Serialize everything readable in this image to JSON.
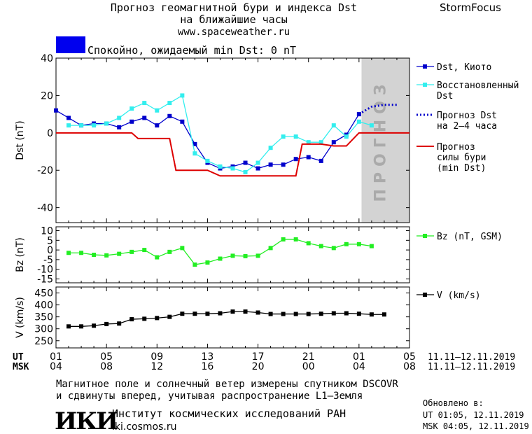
{
  "header": {
    "title_line1": "Прогноз геомагнитной бури и индекса Dst",
    "title_line2": "на ближайшие часы",
    "url": "www.spaceweather.ru",
    "brand": "StormFocus",
    "status_text": "Спокойно, ожидаемый min Dst: 0 nT",
    "status_color": "#0000ee"
  },
  "forecast_watermark": "ПРОГНОЗ",
  "time_axis": {
    "ut_label": "UT",
    "msk_label": "MSK",
    "ut_ticks": [
      "01",
      "05",
      "09",
      "13",
      "17",
      "21",
      "01",
      "05"
    ],
    "msk_ticks": [
      "04",
      "08",
      "12",
      "16",
      "20",
      "00",
      "04",
      "08"
    ],
    "ut_range_text": "11.11–12.11.2019",
    "msk_range_text": "11.11–12.11.2019"
  },
  "footer": {
    "note_line1": "Магнитное поле и солнечный ветер измерены спутником DSCOVR",
    "note_line2": "и сдвинуты вперед, учитывая распространение L1–Земля",
    "institute_logo": "ИКИ",
    "institute_name": "Институт космических исследований РАН",
    "institute_url": "iki.cosmos.ru",
    "updated_label": "Обновлено в:",
    "updated_ut": "UT  01:05, 12.11.2019",
    "updated_msk": "MSK 04:05, 12.11.2019"
  },
  "chart_data": [
    {
      "type": "line",
      "ylabel": "Dst (nT)",
      "ylim": [
        -48,
        40
      ],
      "yticks": [
        40,
        20,
        0,
        -20,
        -40
      ],
      "x_unit": "hours since 01 UT 11.11.2019",
      "xlim": [
        0,
        28
      ],
      "forecast_region": [
        24.2,
        28
      ],
      "series": [
        {
          "name": "Dst, Киото",
          "color": "#0000cc",
          "style": "line-square",
          "x": [
            0,
            1,
            2,
            3,
            4,
            5,
            6,
            7,
            8,
            9,
            10,
            11,
            12,
            13,
            14,
            15,
            16,
            17,
            18,
            19,
            20,
            21,
            22,
            23,
            24
          ],
          "values": [
            12,
            8,
            4,
            5,
            5,
            3,
            6,
            8,
            4,
            9,
            6,
            -6,
            -16,
            -19,
            -18,
            -16,
            -19,
            -17,
            -17,
            -14,
            -13,
            -15,
            -5,
            -1,
            10
          ]
        },
        {
          "name": "Восстановленный Dst",
          "color": "#33eeee",
          "style": "line-square",
          "x": [
            1,
            2,
            3,
            4,
            5,
            6,
            7,
            8,
            9,
            10,
            11,
            12,
            13,
            14,
            15,
            16,
            17,
            18,
            19,
            20,
            21,
            22,
            23,
            24,
            25
          ],
          "values": [
            4,
            4,
            4,
            5,
            8,
            13,
            16,
            12,
            16,
            20,
            -11,
            -15,
            -18,
            -19,
            -21,
            -16,
            -8,
            -2,
            -2,
            -5,
            -5,
            4,
            -2,
            6,
            4
          ]
        },
        {
          "name": "Прогноз Dst на 2–4 часа",
          "color": "#0000cc",
          "style": "dotted",
          "x": [
            24,
            25,
            26,
            27
          ],
          "values": [
            10,
            14,
            15,
            15
          ]
        },
        {
          "name": "Прогноз силы бури (min Dst)",
          "color": "#dd0000",
          "style": "step",
          "x": [
            0,
            6,
            6.5,
            8,
            9,
            9.5,
            12,
            13,
            18,
            19,
            19.5,
            21,
            22,
            23,
            24,
            28
          ],
          "values": [
            0,
            0,
            -3,
            -3,
            -3,
            -20,
            -20,
            -23,
            -23,
            -23,
            -6,
            -6,
            -7,
            -7,
            0,
            0
          ]
        }
      ]
    },
    {
      "type": "line",
      "ylabel": "Bz (nT)",
      "ylim": [
        -17,
        12
      ],
      "yticks": [
        10,
        5,
        0,
        -5,
        -10,
        -15
      ],
      "x_unit": "hours since 01 UT 11.11.2019",
      "xlim": [
        0,
        28
      ],
      "series": [
        {
          "name": "Bz (nT, GSM)",
          "color": "#22ee22",
          "style": "line-square",
          "x": [
            1,
            2,
            3,
            4,
            5,
            6,
            7,
            8,
            9,
            10,
            11,
            12,
            13,
            14,
            15,
            16,
            17,
            18,
            19,
            20,
            21,
            22,
            23,
            24,
            25
          ],
          "values": [
            -1.5,
            -1.5,
            -2.5,
            -2.8,
            -2,
            -1,
            0,
            -3.8,
            -1,
            1,
            -7.6,
            -6.5,
            -4.5,
            -3,
            -3.2,
            -3,
            1,
            5.5,
            5.5,
            3.5,
            2,
            1,
            3,
            3,
            2
          ]
        }
      ]
    },
    {
      "type": "line",
      "ylabel": "V (km/s)",
      "ylim": [
        220,
        475
      ],
      "yticks": [
        450,
        400,
        350,
        300,
        250
      ],
      "x_unit": "hours since 01 UT 11.11.2019",
      "xlim": [
        0,
        28
      ],
      "series": [
        {
          "name": "V (km/s)",
          "color": "#000000",
          "style": "line-square",
          "x": [
            1,
            2,
            3,
            4,
            5,
            6,
            7,
            8,
            9,
            10,
            11,
            12,
            13,
            14,
            15,
            16,
            17,
            18,
            19,
            20,
            21,
            22,
            23,
            24,
            25,
            26
          ],
          "values": [
            310,
            310,
            313,
            320,
            322,
            340,
            342,
            345,
            350,
            363,
            363,
            363,
            365,
            372,
            372,
            368,
            362,
            362,
            362,
            362,
            363,
            365,
            365,
            363,
            360,
            360
          ]
        }
      ]
    }
  ]
}
